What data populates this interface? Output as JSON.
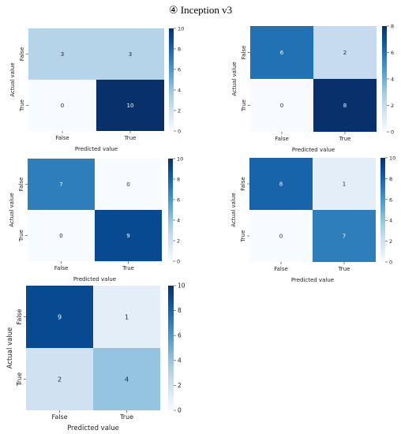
{
  "title": "④  Inception v3",
  "colorscale": [
    "#f7fbff",
    "#deebf7",
    "#c6dbef",
    "#9ecae1",
    "#6baed6",
    "#4292c6",
    "#2171b5",
    "#08519c",
    "#08306b"
  ],
  "chart_data": [
    {
      "type": "heatmap",
      "xlabel": "Predicted value",
      "ylabel": "Actual value",
      "x_categories": [
        "False",
        "True"
      ],
      "y_categories": [
        "False",
        "True"
      ],
      "values": [
        [
          3,
          3
        ],
        [
          0,
          10
        ]
      ],
      "colorbar": {
        "range": [
          0,
          10
        ],
        "ticks": [
          0,
          2,
          4,
          6,
          8,
          10
        ]
      }
    },
    {
      "type": "heatmap",
      "xlabel": "Predicted value",
      "ylabel": "Actual value",
      "x_categories": [
        "False",
        "True"
      ],
      "y_categories": [
        "False",
        "True"
      ],
      "values": [
        [
          6,
          2
        ],
        [
          0,
          8
        ]
      ],
      "colorbar": {
        "range": [
          0,
          8
        ],
        "ticks": [
          0,
          2,
          4,
          6,
          8
        ]
      }
    },
    {
      "type": "heatmap",
      "xlabel": "Predicted value",
      "ylabel": "Actual value",
      "x_categories": [
        "False",
        "True"
      ],
      "y_categories": [
        "False",
        "True"
      ],
      "values": [
        [
          7,
          0
        ],
        [
          0,
          9
        ]
      ],
      "colorbar": {
        "range": [
          0,
          10
        ],
        "ticks": [
          0,
          2,
          4,
          6,
          8,
          10
        ]
      }
    },
    {
      "type": "heatmap",
      "xlabel": "Predicted value",
      "ylabel": "Actual value",
      "x_categories": [
        "False",
        "True"
      ],
      "y_categories": [
        "False",
        "True"
      ],
      "values": [
        [
          8,
          1
        ],
        [
          0,
          7
        ]
      ],
      "colorbar": {
        "range": [
          0,
          10
        ],
        "ticks": [
          0,
          2,
          4,
          6,
          8,
          10
        ]
      }
    },
    {
      "type": "heatmap",
      "xlabel": "Predicted value",
      "ylabel": "Actual value",
      "x_categories": [
        "False",
        "True"
      ],
      "y_categories": [
        "False",
        "True"
      ],
      "values": [
        [
          9,
          1
        ],
        [
          2,
          4
        ]
      ],
      "colorbar": {
        "range": [
          0,
          10
        ],
        "ticks": [
          0,
          2,
          4,
          6,
          8,
          10
        ]
      }
    }
  ]
}
